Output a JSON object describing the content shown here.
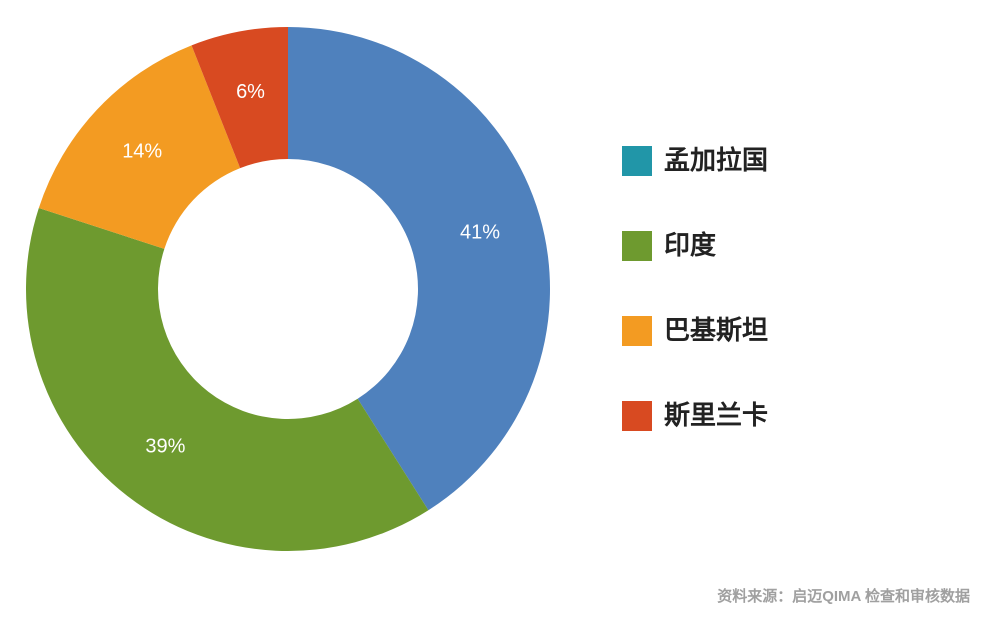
{
  "chart_data": {
    "type": "donut",
    "categories": [
      "孟加拉国",
      "印度",
      "巴基斯坦",
      "斯里兰卡"
    ],
    "values": [
      41,
      39,
      14,
      6
    ],
    "value_labels": [
      "41%",
      "39%",
      "14%",
      "6%"
    ],
    "colors": [
      "#4f81bd",
      "#6e9a2f",
      "#f39b22",
      "#d84a21"
    ],
    "legend_colors": [
      "#2196a8",
      "#6e9a2f",
      "#f39b22",
      "#d84a21"
    ],
    "source": "资料来源：启迈QIMA 检查和审核数据"
  }
}
